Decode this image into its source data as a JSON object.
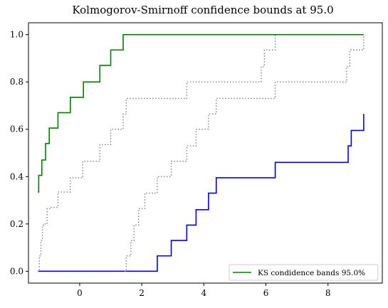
{
  "chart_data": {
    "type": "line",
    "step": true,
    "title": "Kolmogorov-Smirnoff confidence bounds at 95.0",
    "xlabel": "",
    "ylabel": "",
    "xlim": [
      -1.65,
      9.75
    ],
    "ylim": [
      -0.05,
      1.05
    ],
    "xticks": [
      0,
      2,
      4,
      6,
      8
    ],
    "yticks": [
      0.0,
      0.2,
      0.4,
      0.6,
      0.8,
      1.0
    ],
    "xtick_labels": [
      "0",
      "2",
      "4",
      "6",
      "8"
    ],
    "ytick_labels": [
      "0.0",
      "0.2",
      "0.4",
      "0.6",
      "0.8",
      "1.0"
    ],
    "grid": false,
    "legend_position": "lower-right",
    "legend_label": "KS condidence bands 95.0%",
    "series": [
      {
        "name": "KS condidence bands 95.0%",
        "color": "#008000",
        "linestyle": "solid",
        "x": [
          -1.35,
          -1.32,
          -1.22,
          -1.1,
          -0.98,
          -0.7,
          -0.3,
          0.12,
          0.65,
          1.0,
          1.4,
          1.7,
          9.15
        ],
        "y": [
          0.335,
          0.405,
          0.47,
          0.54,
          0.605,
          0.67,
          0.735,
          0.8,
          0.87,
          0.935,
          1.0,
          1.0,
          1.0
        ]
      },
      {
        "name": "",
        "color": "#0000ff",
        "linestyle": "solid",
        "x": [
          -1.35,
          2.5,
          2.95,
          3.45,
          3.75,
          4.15,
          4.4,
          6.3,
          8.65,
          8.75,
          9.15
        ],
        "y": [
          0.0,
          0.065,
          0.13,
          0.195,
          0.26,
          0.33,
          0.395,
          0.46,
          0.53,
          0.595,
          0.665
        ]
      },
      {
        "name": "",
        "color": "#808080",
        "linestyle": "dotted",
        "x": [
          -1.35,
          -1.3,
          -1.25,
          -1.2,
          -1.15,
          -1.05,
          -0.95,
          -0.7,
          -0.3,
          0.1,
          0.65,
          1.0,
          1.4,
          1.5,
          3.45,
          5.85,
          5.95,
          6.05,
          6.3
        ],
        "y": [
          0.0,
          0.065,
          0.13,
          0.195,
          0.2,
          0.265,
          0.27,
          0.335,
          0.395,
          0.465,
          0.535,
          0.6,
          0.665,
          0.73,
          0.8,
          0.865,
          0.935,
          0.935,
          1.0
        ]
      },
      {
        "name": "",
        "color": "#808080",
        "linestyle": "dotted",
        "x": [
          1.45,
          1.5,
          1.65,
          1.75,
          1.9,
          2.1,
          2.5,
          2.95,
          3.45,
          3.75,
          4.15,
          4.4,
          6.3,
          8.6,
          8.7,
          8.75,
          9.15
        ],
        "y": [
          0.0,
          0.065,
          0.13,
          0.195,
          0.265,
          0.33,
          0.4,
          0.465,
          0.53,
          0.6,
          0.665,
          0.73,
          0.8,
          0.865,
          0.935,
          0.935,
          1.0
        ]
      }
    ]
  }
}
